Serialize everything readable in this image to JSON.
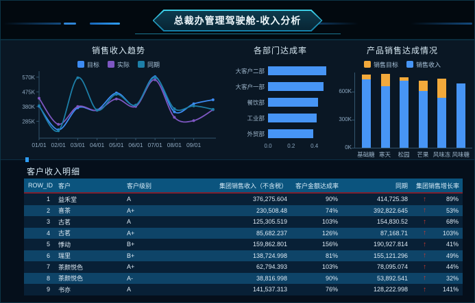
{
  "header": {
    "title": "总裁办管理驾驶舱-收入分析"
  },
  "colors": {
    "accent_blue": "#2f9ff5",
    "bar_blue": "#4795f5",
    "bar_orange": "#f2a93b",
    "line_blue": "#3d8bf2",
    "line_purple": "#7e57c2",
    "line_teal": "#1d7fa8",
    "arrow_red": "#d23a2e",
    "table_header_bg": "#0b547e"
  },
  "chart_data": [
    {
      "type": "line",
      "title": "销售收入趋势",
      "unit": "K",
      "x": [
        "01/01",
        "02/01",
        "03/01",
        "04/01",
        "05/01",
        "06/01",
        "07/01",
        "08/01",
        "09/01",
        ""
      ],
      "x_tick_labels": [
        "01/01",
        "02/01",
        "03/01",
        "04/01",
        "05/01",
        "06/01",
        "07/01",
        "08/01",
        "09/01"
      ],
      "series": [
        {
          "name": "目标",
          "color": "#3d8bf2",
          "values": [
            383,
            230,
            372,
            358,
            468,
            388,
            573,
            346,
            398,
            424
          ]
        },
        {
          "name": "实际",
          "color": "#7e57c2",
          "values": [
            434,
            266,
            380,
            356,
            429,
            381,
            553,
            311,
            289,
            360
          ]
        },
        {
          "name": "同期",
          "color": "#1d7fa8",
          "values": [
            386,
            224,
            566,
            357,
            459,
            390,
            568,
            366,
            384,
            362
          ]
        }
      ],
      "ylim": [
        185,
        600
      ],
      "y_ticks": [
        {
          "label": "570K",
          "value": 570
        },
        {
          "label": "475K",
          "value": 475
        },
        {
          "label": "380K",
          "value": 380
        },
        {
          "label": "285K",
          "value": 285
        }
      ],
      "legend_position": "top",
      "grid": false
    },
    {
      "type": "bar-horizontal",
      "title": "各部门达成率",
      "categories": [
        "大客户二部",
        "大客户一部",
        "餐饮部",
        "工业部",
        "外贸部"
      ],
      "values": [
        0.5,
        0.48,
        0.43,
        0.42,
        0.39
      ],
      "xlim": [
        0,
        0.55
      ],
      "x_ticks": [
        {
          "label": "0.0",
          "value": 0.0
        },
        {
          "label": "0.2",
          "value": 0.2
        },
        {
          "label": "0.4",
          "value": 0.4
        }
      ],
      "bar_color": "#4795f5",
      "grid": false
    },
    {
      "type": "bar-stacked",
      "title": "产品销售达成情况",
      "unit": "K",
      "categories": [
        "基础糖",
        "寒天",
        "松园",
        "芒果",
        "风味冻",
        "风味糖"
      ],
      "series": [
        {
          "name": "销售收入",
          "color": "#4795f5",
          "values": [
            730,
            655,
            715,
            605,
            530,
            685
          ]
        },
        {
          "name": "销售目标",
          "color": "#f2a93b",
          "values": [
            45,
            130,
            35,
            105,
            205,
            0
          ]
        }
      ],
      "legend": [
        "销售目标",
        "销售收入"
      ],
      "legend_colors": [
        "#f2a93b",
        "#4795f5"
      ],
      "ylim": [
        0,
        800
      ],
      "y_ticks": [
        {
          "label": "600K",
          "value": 600
        },
        {
          "label": "300K",
          "value": 300
        },
        {
          "label": "0K",
          "value": 0
        }
      ],
      "legend_position": "top",
      "grid": false
    }
  ],
  "table": {
    "section_title": "客户收入明细",
    "up_arrow": "↑",
    "columns": [
      {
        "key": "row_id",
        "label": "ROW_ID",
        "align": "right"
      },
      {
        "key": "customer",
        "label": "客户",
        "align": "left"
      },
      {
        "key": "level",
        "label": "客户级别",
        "align": "left"
      },
      {
        "key": "revenue",
        "label": "集团销售收入（不含税）",
        "align": "right"
      },
      {
        "key": "rate",
        "label": "客户金额达成率",
        "align": "right"
      },
      {
        "key": "period",
        "label": "同期",
        "align": "right"
      },
      {
        "key": "growth",
        "label": "集团销售增长率",
        "align": "right"
      }
    ],
    "rows": [
      {
        "row_id": "1",
        "customer": "益禾堂",
        "level": "A",
        "revenue": "376,275.604",
        "rate": "90%",
        "period": "414,725.38",
        "growth": "89%"
      },
      {
        "row_id": "2",
        "customer": "喜茶",
        "level": "A+",
        "revenue": "230,508.48",
        "rate": "74%",
        "period": "392,822.645",
        "growth": "53%"
      },
      {
        "row_id": "3",
        "customer": "古茗",
        "level": "A",
        "revenue": "125,305.519",
        "rate": "103%",
        "period": "154,830.52",
        "growth": "68%"
      },
      {
        "row_id": "4",
        "customer": "古茗",
        "level": "A+",
        "revenue": "85,682.237",
        "rate": "126%",
        "period": "87,168.71",
        "growth": "103%"
      },
      {
        "row_id": "5",
        "customer": "悸动",
        "level": "B+",
        "revenue": "159,862.801",
        "rate": "156%",
        "period": "190,927.814",
        "growth": "41%"
      },
      {
        "row_id": "6",
        "customer": "瑞里",
        "level": "B+",
        "revenue": "138,724.998",
        "rate": "81%",
        "period": "155,121.296",
        "growth": "49%"
      },
      {
        "row_id": "7",
        "customer": "茶颜悦色",
        "level": "A+",
        "revenue": "62,794.393",
        "rate": "103%",
        "period": "78,095.074",
        "growth": "44%"
      },
      {
        "row_id": "8",
        "customer": "茶颜悦色",
        "level": "A-",
        "revenue": "38,816.998",
        "rate": "90%",
        "period": "53,892.541",
        "growth": "32%"
      },
      {
        "row_id": "9",
        "customer": "书亦",
        "level": "A",
        "revenue": "141,537.313",
        "rate": "76%",
        "period": "128,222.998",
        "growth": "141%"
      }
    ]
  }
}
